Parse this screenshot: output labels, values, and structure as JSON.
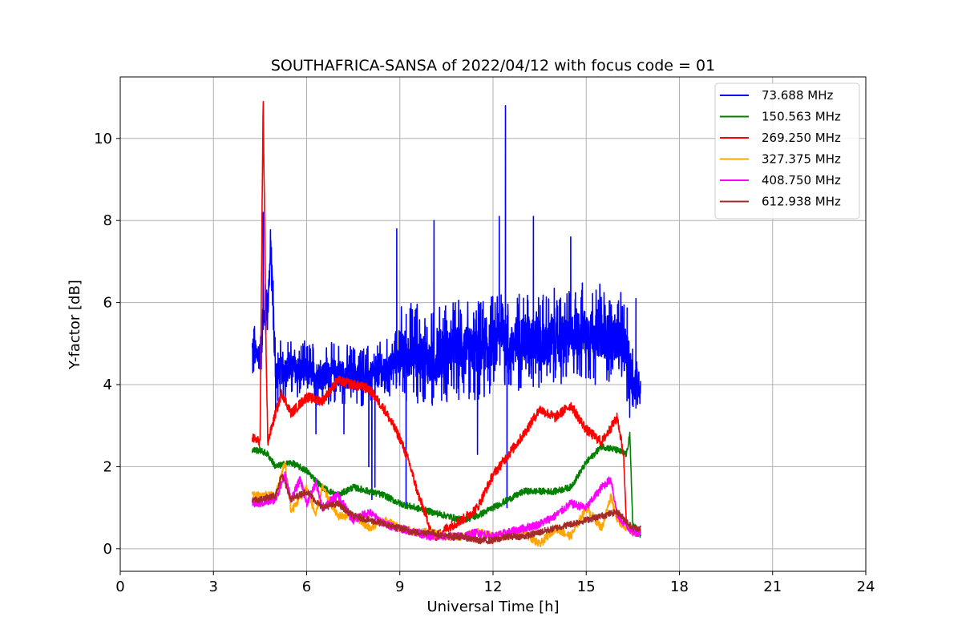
{
  "chart_data": {
    "type": "line",
    "title": "SOUTHAFRICA-SANSA of 2022/04/12 with focus code = 01",
    "xlabel": "Universal Time [h]",
    "ylabel": "Y-factor [dB]",
    "xlim": [
      0,
      24
    ],
    "ylim": [
      -0.55,
      11.5
    ],
    "xticks": [
      0,
      3,
      6,
      9,
      12,
      15,
      18,
      21,
      24
    ],
    "yticks": [
      0,
      2,
      4,
      6,
      8,
      10
    ],
    "grid": true,
    "legend_position": "top-right",
    "series": [
      {
        "name": " 73.688 MHz",
        "color": "#0000ff",
        "x": [
          4.25,
          4.5,
          4.6,
          4.75,
          4.85,
          5.0,
          5.5,
          6.0,
          6.5,
          7.0,
          7.5,
          8.0,
          8.5,
          8.9,
          9.0,
          9.5,
          10.0,
          10.5,
          11.0,
          11.5,
          12.0,
          12.3,
          12.4,
          12.5,
          13.0,
          13.5,
          14.0,
          14.5,
          15.0,
          15.5,
          16.0,
          16.3,
          16.5,
          16.75
        ],
        "values": [
          4.8,
          4.7,
          5.5,
          6.0,
          7.3,
          4.3,
          4.4,
          4.3,
          4.2,
          4.3,
          4.2,
          4.2,
          4.3,
          4.6,
          4.7,
          4.8,
          4.5,
          4.8,
          4.9,
          4.8,
          5.0,
          5.5,
          5.0,
          4.8,
          5.2,
          5.0,
          5.1,
          5.2,
          5.3,
          5.2,
          5.1,
          4.8,
          4.0,
          4.0
        ],
        "spikes": [
          [
            4.6,
            8.2
          ],
          [
            4.85,
            7.4
          ],
          [
            5.0,
            3.3
          ],
          [
            6.3,
            2.8
          ],
          [
            7.2,
            2.8
          ],
          [
            8.0,
            2.0
          ],
          [
            8.1,
            1.2
          ],
          [
            8.2,
            1.5
          ],
          [
            8.9,
            7.8
          ],
          [
            9.2,
            1.0
          ],
          [
            10.1,
            8.0
          ],
          [
            11.5,
            2.3
          ],
          [
            12.2,
            8.1
          ],
          [
            12.4,
            10.8
          ],
          [
            12.45,
            1.0
          ],
          [
            13.3,
            8.1
          ],
          [
            14.5,
            7.6
          ],
          [
            16.4,
            3.2
          ],
          [
            16.6,
            6.1
          ]
        ]
      },
      {
        "name": "150.563 MHz",
        "color": "#008000",
        "x": [
          4.25,
          4.5,
          4.75,
          5.0,
          5.5,
          6.0,
          6.5,
          7.0,
          7.5,
          8.0,
          8.5,
          9.0,
          9.5,
          10.0,
          10.5,
          11.0,
          11.5,
          12.0,
          12.5,
          13.0,
          13.5,
          14.0,
          14.5,
          15.0,
          15.5,
          16.0,
          16.3,
          16.4,
          16.5,
          16.75
        ],
        "values": [
          2.4,
          2.4,
          2.3,
          2.0,
          2.1,
          1.9,
          1.5,
          1.3,
          1.5,
          1.4,
          1.3,
          1.1,
          1.0,
          0.9,
          0.8,
          0.7,
          0.8,
          1.0,
          1.2,
          1.4,
          1.4,
          1.4,
          1.5,
          2.1,
          2.5,
          2.4,
          2.3,
          2.8,
          0.6,
          0.3
        ]
      },
      {
        "name": "269.250 MHz",
        "color": "#ff0000",
        "x": [
          4.25,
          4.5,
          4.6,
          4.7,
          4.75,
          5.0,
          5.2,
          5.5,
          6.0,
          6.5,
          7.0,
          7.5,
          8.0,
          8.5,
          9.0,
          9.3,
          9.6,
          9.9,
          10.0,
          10.2,
          10.5,
          11.0,
          11.5,
          12.0,
          12.5,
          13.0,
          13.5,
          14.0,
          14.5,
          15.0,
          15.5,
          16.0,
          16.2,
          16.3
        ],
        "values": [
          2.7,
          2.6,
          11.0,
          4.5,
          2.6,
          3.3,
          3.8,
          3.3,
          3.7,
          3.6,
          4.1,
          4.0,
          3.9,
          3.4,
          2.7,
          2.1,
          1.3,
          0.7,
          0.4,
          0.3,
          0.5,
          0.7,
          1.0,
          1.8,
          2.3,
          2.8,
          3.4,
          3.2,
          3.5,
          2.9,
          2.6,
          3.2,
          2.3,
          0.6
        ]
      },
      {
        "name": "327.375 MHz",
        "color": "#ffa500",
        "x": [
          4.25,
          4.5,
          5.0,
          5.3,
          5.5,
          6.0,
          6.3,
          6.5,
          7.0,
          7.5,
          8.0,
          8.5,
          9.0,
          9.5,
          10.0,
          10.5,
          11.0,
          11.5,
          12.0,
          12.5,
          13.0,
          13.5,
          14.0,
          14.5,
          15.0,
          15.5,
          15.8,
          16.0,
          16.5,
          16.75
        ],
        "values": [
          1.3,
          1.3,
          1.3,
          2.1,
          0.9,
          1.5,
          0.8,
          1.5,
          0.8,
          0.8,
          0.5,
          0.7,
          0.5,
          0.4,
          0.4,
          0.3,
          0.3,
          0.4,
          0.3,
          0.3,
          0.4,
          0.1,
          0.5,
          0.3,
          1.0,
          0.5,
          1.3,
          0.7,
          0.4,
          0.4
        ]
      },
      {
        "name": "408.750 MHz",
        "color": "#ff00ff",
        "x": [
          4.25,
          4.5,
          5.0,
          5.3,
          5.5,
          5.8,
          6.0,
          6.3,
          6.5,
          7.0,
          7.5,
          8.0,
          8.5,
          9.0,
          9.5,
          10.0,
          10.5,
          11.0,
          11.5,
          12.0,
          12.5,
          13.0,
          13.5,
          14.0,
          14.5,
          15.0,
          15.5,
          15.8,
          16.0,
          16.5,
          16.75
        ],
        "values": [
          1.1,
          1.1,
          1.2,
          1.8,
          1.2,
          1.7,
          1.1,
          1.6,
          1.0,
          1.3,
          0.7,
          0.9,
          0.6,
          0.5,
          0.4,
          0.3,
          0.3,
          0.3,
          0.4,
          0.3,
          0.4,
          0.5,
          0.6,
          0.8,
          1.1,
          1.0,
          1.5,
          1.7,
          0.8,
          0.4,
          0.4
        ]
      },
      {
        "name": "612.938 MHz",
        "color": "#a52a2a",
        "x": [
          4.25,
          4.5,
          5.0,
          5.2,
          5.5,
          6.0,
          6.5,
          7.0,
          7.5,
          8.0,
          8.5,
          9.0,
          9.5,
          10.0,
          10.5,
          11.0,
          11.5,
          12.0,
          12.5,
          13.0,
          13.5,
          14.0,
          14.5,
          15.0,
          15.5,
          16.0,
          16.5,
          16.75
        ],
        "values": [
          1.2,
          1.2,
          1.3,
          1.8,
          1.2,
          1.4,
          1.0,
          1.1,
          0.8,
          0.7,
          0.6,
          0.5,
          0.4,
          0.4,
          0.3,
          0.3,
          0.2,
          0.2,
          0.3,
          0.3,
          0.4,
          0.5,
          0.6,
          0.7,
          0.8,
          0.9,
          0.5,
          0.5
        ]
      }
    ]
  }
}
